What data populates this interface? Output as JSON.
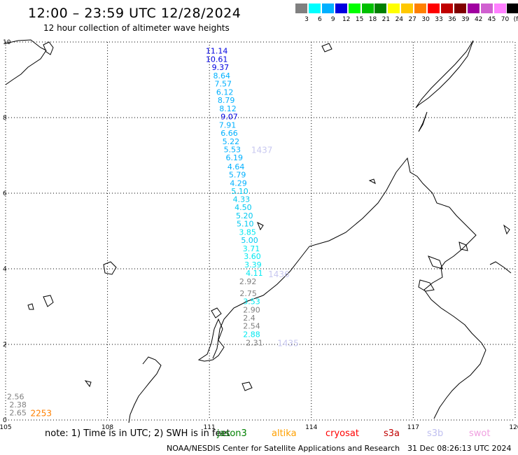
{
  "header": {
    "title": "12:00 – 23:59 UTC 12/28/2024",
    "subtitle": "12 hour collection of altimeter wave heights"
  },
  "legend": {
    "labels": [
      "3",
      "6",
      "9",
      "12",
      "15",
      "18",
      "21",
      "24",
      "27",
      "30",
      "33",
      "36",
      "39",
      "42",
      "45",
      "70",
      "(ft)"
    ],
    "colors": [
      "#808080",
      "#00ffff",
      "#00b0ff",
      "#0000e0",
      "#00ff00",
      "#00c000",
      "#008000",
      "#ffff00",
      "#ffc800",
      "#ff8000",
      "#ff0000",
      "#c00000",
      "#800000",
      "#a000a0",
      "#d060d0",
      "#ff80ff",
      "#000000"
    ]
  },
  "axes": {
    "x_ticks": [
      "105",
      "108",
      "111",
      "114",
      "117",
      "120"
    ],
    "y_ticks": [
      "0",
      "2",
      "4",
      "6",
      "8",
      "10"
    ]
  },
  "track_labels": [
    {
      "text": "11.14",
      "color": "#0000e0",
      "lon": 111.22,
      "lat": 9.77
    },
    {
      "text": "10.61",
      "color": "#0000e0",
      "lon": 111.22,
      "lat": 9.55
    },
    {
      "text": "9.37",
      "color": "#0000e0",
      "lon": 111.4,
      "lat": 9.33
    },
    {
      "text": "8.64",
      "color": "#00b0ff",
      "lon": 111.44,
      "lat": 9.11
    },
    {
      "text": "7.57",
      "color": "#00b0ff",
      "lon": 111.48,
      "lat": 8.9
    },
    {
      "text": "6.12",
      "color": "#00b0ff",
      "lon": 111.53,
      "lat": 8.68
    },
    {
      "text": "8.79",
      "color": "#00b0ff",
      "lon": 111.57,
      "lat": 8.46
    },
    {
      "text": "8.12",
      "color": "#00b0ff",
      "lon": 111.62,
      "lat": 8.24
    },
    {
      "text": "9.07",
      "color": "#0000e0",
      "lon": 111.66,
      "lat": 8.03
    },
    {
      "text": "7.91",
      "color": "#00b0ff",
      "lon": 111.61,
      "lat": 7.81
    },
    {
      "text": "6.66",
      "color": "#00b0ff",
      "lon": 111.66,
      "lat": 7.59
    },
    {
      "text": "5.22",
      "color": "#00b0ff",
      "lon": 111.71,
      "lat": 7.37
    },
    {
      "text": "5.53",
      "color": "#00b0ff",
      "lon": 111.75,
      "lat": 7.16
    },
    {
      "text": "6.19",
      "color": "#00b0ff",
      "lon": 111.81,
      "lat": 6.94
    },
    {
      "text": "4.64",
      "color": "#00b0ff",
      "lon": 111.86,
      "lat": 6.7
    },
    {
      "text": "5.79",
      "color": "#00b0ff",
      "lon": 111.9,
      "lat": 6.49
    },
    {
      "text": "4.29",
      "color": "#00b0ff",
      "lon": 111.93,
      "lat": 6.27
    },
    {
      "text": "5.10",
      "color": "#00c8f0",
      "lon": 111.97,
      "lat": 6.06
    },
    {
      "text": "4.33",
      "color": "#00c8f0",
      "lon": 112.02,
      "lat": 5.84
    },
    {
      "text": "4.50",
      "color": "#00c8f0",
      "lon": 112.07,
      "lat": 5.63
    },
    {
      "text": "5.20",
      "color": "#00c8f0",
      "lon": 112.11,
      "lat": 5.41
    },
    {
      "text": "5.10",
      "color": "#00c8f0",
      "lon": 112.13,
      "lat": 5.19
    },
    {
      "text": "3.85",
      "color": "#00e8f0",
      "lon": 112.2,
      "lat": 4.97
    },
    {
      "text": "5.00",
      "color": "#00c8f0",
      "lon": 112.26,
      "lat": 4.76
    },
    {
      "text": "3.71",
      "color": "#00e8f0",
      "lon": 112.31,
      "lat": 4.54
    },
    {
      "text": "3.60",
      "color": "#00e8f0",
      "lon": 112.34,
      "lat": 4.33
    },
    {
      "text": "3.39",
      "color": "#00e8f0",
      "lon": 112.36,
      "lat": 4.11
    },
    {
      "text": "4.11",
      "color": "#00e8f0",
      "lon": 112.4,
      "lat": 3.89
    },
    {
      "text": "2.92",
      "color": "#808080",
      "lon": 112.21,
      "lat": 3.67
    },
    {
      "text": "2.75",
      "color": "#808080",
      "lon": 112.22,
      "lat": 3.35
    },
    {
      "text": "3.53",
      "color": "#00e8f0",
      "lon": 112.32,
      "lat": 3.14
    },
    {
      "text": "2.90",
      "color": "#808080",
      "lon": 112.32,
      "lat": 2.92
    },
    {
      "text": "2.4",
      "color": "#808080",
      "lon": 112.32,
      "lat": 2.7
    },
    {
      "text": "2.54",
      "color": "#808080",
      "lon": 112.32,
      "lat": 2.49
    },
    {
      "text": "2.88",
      "color": "#00e8f0",
      "lon": 112.32,
      "lat": 2.27
    },
    {
      "text": "2.31",
      "color": "#808080",
      "lon": 112.4,
      "lat": 2.05
    },
    {
      "text": "2.56",
      "color": "#808080",
      "lon": 105.37,
      "lat": 0.62
    },
    {
      "text": "2.38",
      "color": "#808080",
      "lon": 105.44,
      "lat": 0.41
    },
    {
      "text": "2.65",
      "color": "#808080",
      "lon": 105.44,
      "lat": 0.19
    }
  ],
  "time_labels": [
    {
      "text": "1437",
      "color": "#c8c8f0",
      "lon": 112.56,
      "lat": 7.16
    },
    {
      "text": "1436",
      "color": "#c8c8f0",
      "lon": 113.06,
      "lat": 3.87
    },
    {
      "text": "1435",
      "color": "#c8c8f0",
      "lon": 113.33,
      "lat": 2.05
    },
    {
      "text": "2253",
      "color": "#ff8000",
      "lon": 106.06,
      "lat": 0.19
    }
  ],
  "notes": {
    "text": "note:  1) Time is in UTC; 2) SWH is in feet",
    "satellites": [
      {
        "name": "jason3",
        "color": "#008000"
      },
      {
        "name": "altika",
        "color": "#ffa000"
      },
      {
        "name": "cryosat",
        "color": "#ff0000"
      },
      {
        "name": "s3a",
        "color": "#c00000"
      },
      {
        "name": "s3b",
        "color": "#c0c0f0"
      },
      {
        "name": "swot",
        "color": "#f0a0e0"
      }
    ]
  },
  "footer": {
    "credit": "NOAA/NESDIS Center for Satellite Applications and Research",
    "timestamp": "31 Dec 08:26:13 UTC 2024"
  }
}
